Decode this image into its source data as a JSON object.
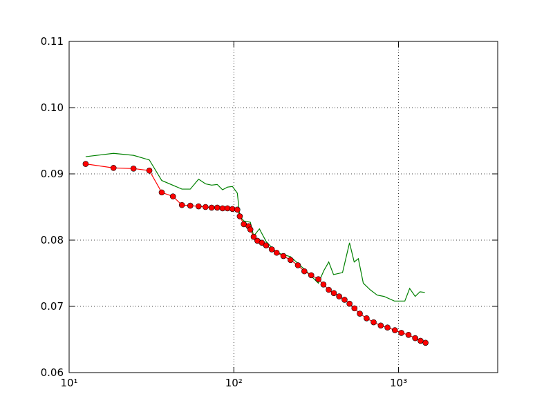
{
  "chart_data": {
    "type": "line",
    "xscale": "log",
    "grid": true,
    "xlim": [
      10,
      4000
    ],
    "ylim": [
      0.06,
      0.11
    ],
    "xticks": [
      {
        "value": 10,
        "label": "10¹"
      },
      {
        "value": 100,
        "label": "10²"
      },
      {
        "value": 1000,
        "label": "10³"
      }
    ],
    "yticks": [
      0.06,
      0.07,
      0.08,
      0.09,
      {
        "value": 0.1,
        "label": "0.10"
      },
      0.11
    ],
    "series": [
      {
        "color": "#008000",
        "x": [
          12.6,
          18.6,
          24.6,
          30.7,
          36.5,
          48.4,
          54.4,
          61.1,
          67.3,
          73.3,
          79.3,
          85.4,
          91.5,
          98.1,
          105,
          108.7,
          115,
          126,
          132,
          143,
          157,
          182,
          221,
          268,
          326,
          352,
          377,
          403,
          457,
          504,
          538,
          570,
          611,
          673,
          742,
          817,
          944,
          1092,
          1168,
          1262,
          1349,
          1445
        ],
        "values": [
          0.0926,
          0.0931,
          0.0928,
          0.0921,
          0.089,
          0.0877,
          0.0877,
          0.0892,
          0.0885,
          0.0883,
          0.0884,
          0.0876,
          0.088,
          0.0881,
          0.0871,
          0.0836,
          0.0829,
          0.0827,
          0.0806,
          0.0817,
          0.0798,
          0.0781,
          0.0775,
          0.0756,
          0.0735,
          0.0754,
          0.0767,
          0.0748,
          0.0751,
          0.0796,
          0.0767,
          0.0772,
          0.0735,
          0.0725,
          0.0717,
          0.0715,
          0.0708,
          0.0708,
          0.0727,
          0.0715,
          0.0722,
          0.0721
        ]
      },
      {
        "color": "#ff0000",
        "marker": "circle",
        "x": [
          12.6,
          18.6,
          24.6,
          30.7,
          36.5,
          42.7,
          48.4,
          54.4,
          61.1,
          67.3,
          73.3,
          79.3,
          85.4,
          91.5,
          98.1,
          105,
          108.7,
          115,
          123,
          126,
          132,
          139,
          148,
          157,
          170,
          182,
          200,
          221,
          245,
          268,
          295,
          326,
          350,
          377,
          405,
          436,
          470,
          504,
          540,
          582,
          640,
          706,
          780,
          857,
          950,
          1040,
          1150,
          1262,
          1360,
          1459
        ],
        "values": [
          0.0915,
          0.0909,
          0.0908,
          0.0905,
          0.0872,
          0.0866,
          0.0853,
          0.0852,
          0.0851,
          0.085,
          0.0849,
          0.0849,
          0.0848,
          0.0848,
          0.0847,
          0.0846,
          0.0836,
          0.0824,
          0.0821,
          0.0816,
          0.0805,
          0.0799,
          0.0796,
          0.0792,
          0.0786,
          0.0781,
          0.0776,
          0.077,
          0.0762,
          0.0753,
          0.0747,
          0.0741,
          0.0733,
          0.0725,
          0.072,
          0.0715,
          0.071,
          0.0704,
          0.0697,
          0.0689,
          0.0682,
          0.0676,
          0.0671,
          0.0668,
          0.0664,
          0.066,
          0.0657,
          0.0652,
          0.0648,
          0.0645
        ]
      }
    ]
  }
}
